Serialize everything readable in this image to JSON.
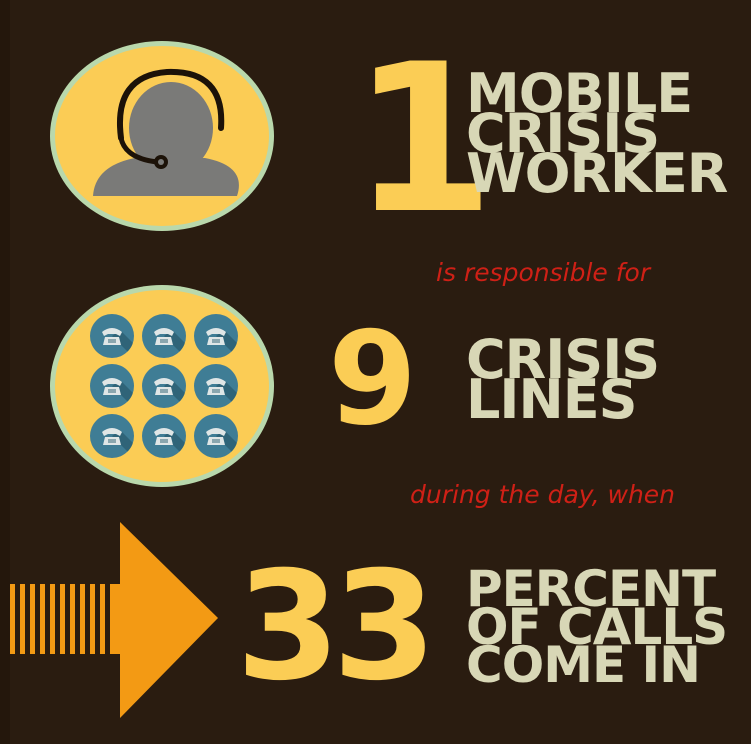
{
  "colors": {
    "background": "#2a1c10",
    "accent_yellow": "#fbcd55",
    "label_cream": "#d8d7b6",
    "connector_red": "#cf2016",
    "arrow_orange": "#f39a14",
    "phone_blue": "#3f7d95"
  },
  "stats": [
    {
      "number": "1",
      "label_lines": [
        "MOBILE",
        "CRISIS",
        "WORKER"
      ],
      "icon": "headset-person-icon"
    },
    {
      "number": "9",
      "label_lines": [
        "CRISIS",
        "LINES"
      ],
      "icon": "phone-grid-icon",
      "phone_count": 9
    },
    {
      "number": "33",
      "label_lines": [
        "PERCENT",
        "OF CALLS",
        "COME IN"
      ],
      "icon": "arrow-icon"
    }
  ],
  "connectors": [
    "is responsible for",
    "during the day, when"
  ]
}
